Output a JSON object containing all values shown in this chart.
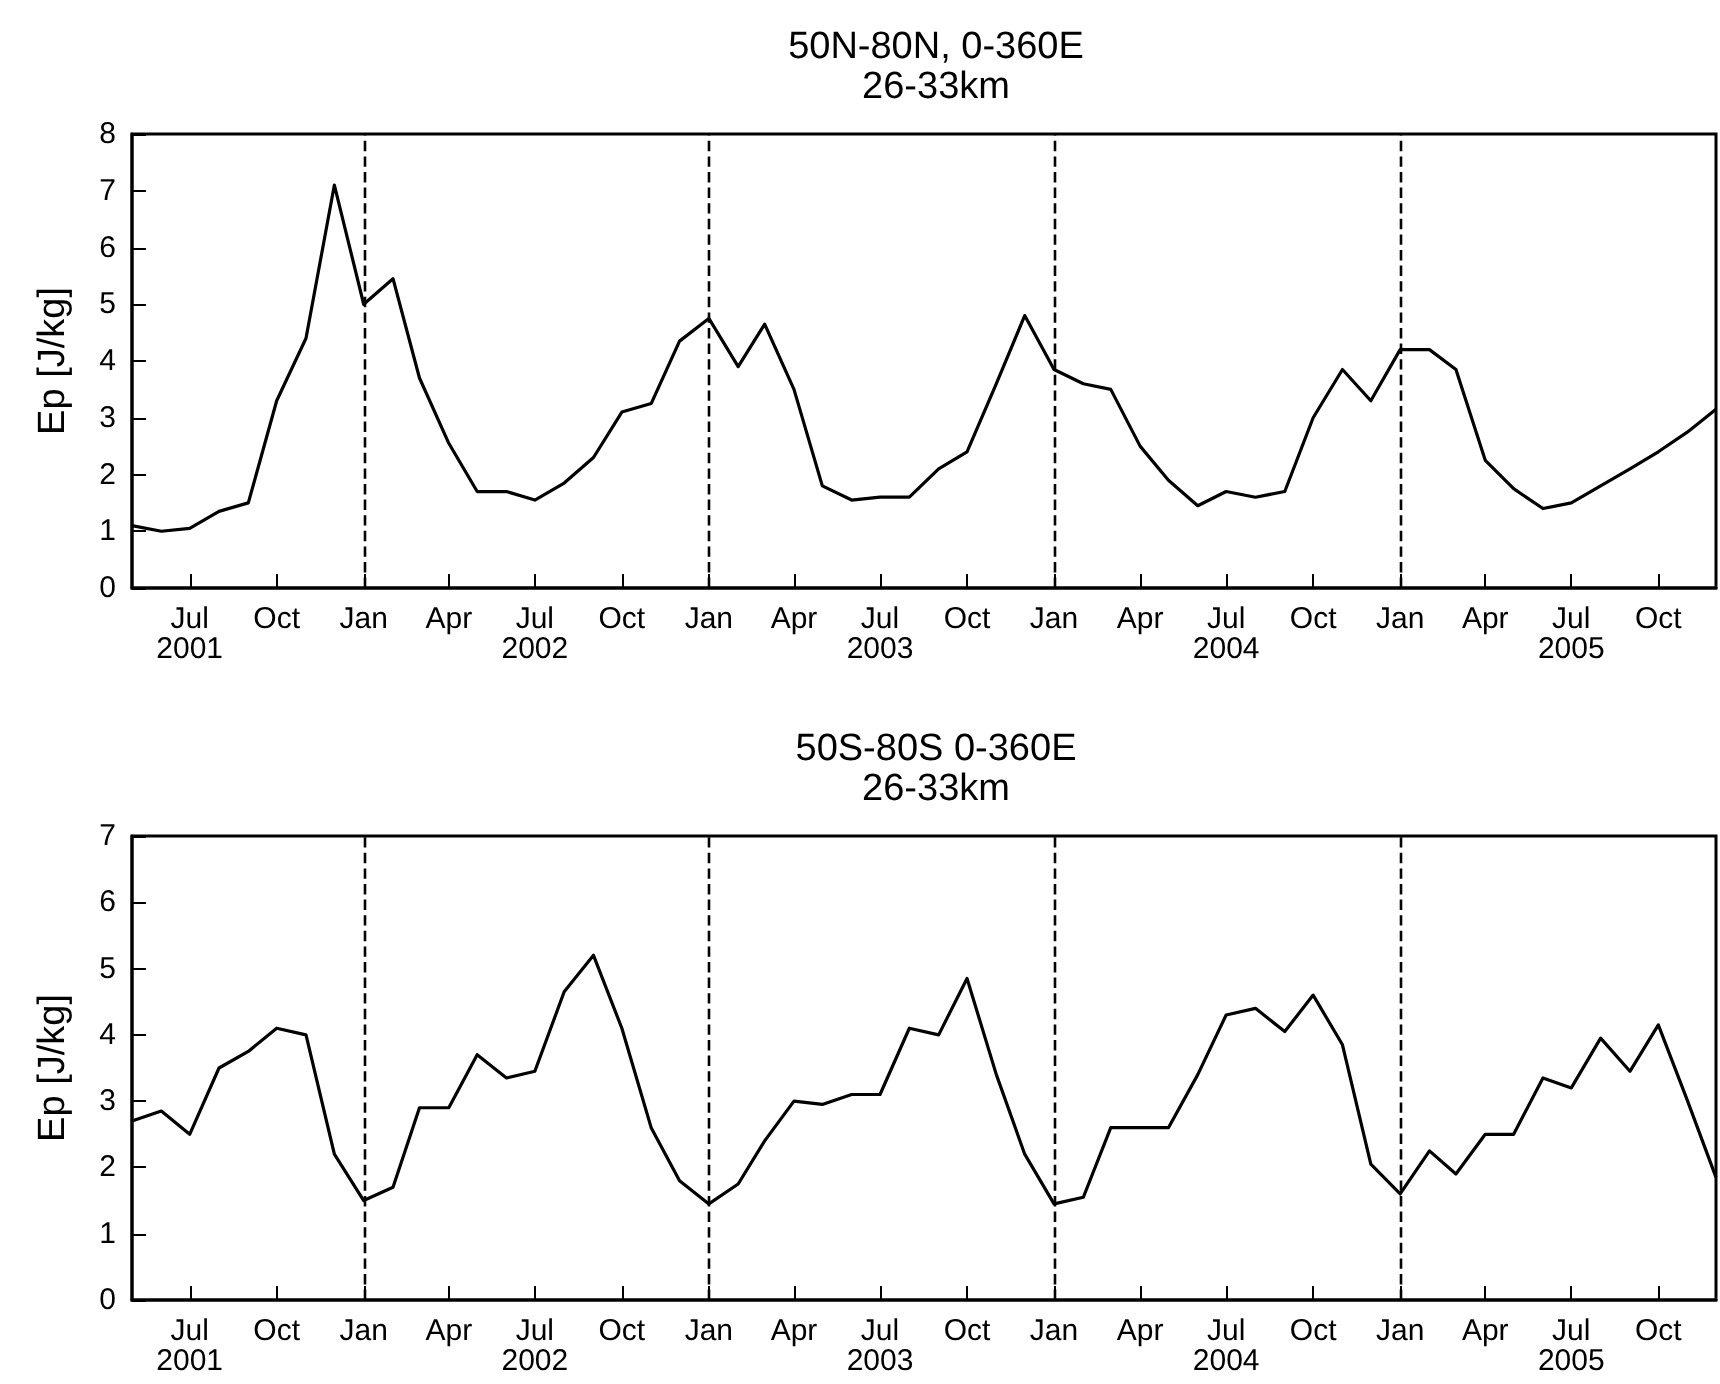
{
  "chart_data": [
    {
      "type": "line",
      "title": "50N-80N, 0-360E",
      "subtitle": "26-33km",
      "ylabel": "Ep [J/kg]",
      "x": [
        "2001-05",
        "2001-06",
        "2001-07",
        "2001-08",
        "2001-09",
        "2001-10",
        "2001-11",
        "2001-12",
        "2002-01",
        "2002-02",
        "2002-03",
        "2002-04",
        "2002-05",
        "2002-06",
        "2002-07",
        "2002-08",
        "2002-09",
        "2002-10",
        "2002-11",
        "2002-12",
        "2003-01",
        "2003-02",
        "2003-03",
        "2003-04",
        "2003-05",
        "2003-06",
        "2003-07",
        "2003-08",
        "2003-09",
        "2003-10",
        "2003-11",
        "2003-12",
        "2004-01",
        "2004-02",
        "2004-03",
        "2004-04",
        "2004-05",
        "2004-06",
        "2004-07",
        "2004-08",
        "2004-09",
        "2004-10",
        "2004-11",
        "2004-12",
        "2005-01",
        "2005-02",
        "2005-03",
        "2005-04",
        "2005-05",
        "2005-06",
        "2005-07",
        "2005-08",
        "2005-09",
        "2005-10",
        "2005-11",
        "2005-12"
      ],
      "series": [
        {
          "color": "#000000",
          "values": [
            1.1,
            1.0,
            1.05,
            1.35,
            1.5,
            3.3,
            4.4,
            7.1,
            5.0,
            5.45,
            3.7,
            2.55,
            1.7,
            1.7,
            1.55,
            1.85,
            2.3,
            3.1,
            3.25,
            4.35,
            4.75,
            3.9,
            4.65,
            3.5,
            1.8,
            1.55,
            1.6,
            1.6,
            2.1,
            2.4,
            3.6,
            4.8,
            3.85,
            3.6,
            3.5,
            2.5,
            1.9,
            1.45,
            1.7,
            1.6,
            1.7,
            3.0,
            3.85,
            3.3,
            4.2,
            4.2,
            3.85,
            2.25,
            1.75,
            1.4,
            1.5,
            1.8,
            2.1,
            2.4,
            2.75,
            3.15
          ]
        }
      ],
      "xlim": [
        "2001-05",
        "2005-12"
      ],
      "xticks": [
        {
          "value": "2001-07",
          "label": "Jul\n2001"
        },
        {
          "value": "2001-10",
          "label": "Oct"
        },
        {
          "value": "2002-01",
          "label": "Jan"
        },
        {
          "value": "2002-04",
          "label": "Apr"
        },
        {
          "value": "2002-07",
          "label": "Jul\n2002"
        },
        {
          "value": "2002-10",
          "label": "Oct"
        },
        {
          "value": "2003-01",
          "label": "Jan"
        },
        {
          "value": "2003-04",
          "label": "Apr"
        },
        {
          "value": "2003-07",
          "label": "Jul\n2003"
        },
        {
          "value": "2003-10",
          "label": "Oct"
        },
        {
          "value": "2004-01",
          "label": "Jan"
        },
        {
          "value": "2004-04",
          "label": "Apr"
        },
        {
          "value": "2004-07",
          "label": "Jul\n2004"
        },
        {
          "value": "2004-10",
          "label": "Oct"
        },
        {
          "value": "2005-01",
          "label": "Jan"
        },
        {
          "value": "2005-04",
          "label": "Apr"
        },
        {
          "value": "2005-07",
          "label": "Jul\n2005"
        },
        {
          "value": "2005-10",
          "label": "Oct"
        }
      ],
      "ylim": [
        0,
        8
      ],
      "yticks": [
        0,
        1,
        2,
        3,
        4,
        5,
        6,
        7,
        8
      ],
      "ref_lines": [
        {
          "axis": "x",
          "value": "2002-01",
          "line_style": "dashed",
          "color": "#000000"
        },
        {
          "axis": "x",
          "value": "2003-01",
          "line_style": "dashed",
          "color": "#000000"
        },
        {
          "axis": "x",
          "value": "2004-01",
          "line_style": "dashed",
          "color": "#000000"
        },
        {
          "axis": "x",
          "value": "2005-01",
          "line_style": "dashed",
          "color": "#000000"
        }
      ],
      "grid": false,
      "marker": "none",
      "line_style": "solid"
    },
    {
      "type": "line",
      "title": "50S-80S 0-360E",
      "subtitle": "26-33km",
      "ylabel": "Ep [J/kg]",
      "x": [
        "2001-05",
        "2001-06",
        "2001-07",
        "2001-08",
        "2001-09",
        "2001-10",
        "2001-11",
        "2001-12",
        "2002-01",
        "2002-02",
        "2002-03",
        "2002-04",
        "2002-05",
        "2002-06",
        "2002-07",
        "2002-08",
        "2002-09",
        "2002-10",
        "2002-11",
        "2002-12",
        "2003-01",
        "2003-02",
        "2003-03",
        "2003-04",
        "2003-05",
        "2003-06",
        "2003-07",
        "2003-08",
        "2003-09",
        "2003-10",
        "2003-11",
        "2003-12",
        "2004-01",
        "2004-02",
        "2004-03",
        "2004-04",
        "2004-05",
        "2004-06",
        "2004-07",
        "2004-08",
        "2004-09",
        "2004-10",
        "2004-11",
        "2004-12",
        "2005-01",
        "2005-02",
        "2005-03",
        "2005-04",
        "2005-05",
        "2005-06",
        "2005-07",
        "2005-08",
        "2005-09",
        "2005-10",
        "2005-11",
        "2005-12"
      ],
      "series": [
        {
          "color": "#000000",
          "values": [
            2.7,
            2.85,
            2.5,
            3.5,
            3.75,
            4.1,
            4.0,
            2.2,
            1.5,
            1.7,
            2.9,
            2.9,
            3.7,
            3.35,
            3.45,
            4.65,
            5.2,
            4.1,
            2.6,
            1.8,
            1.45,
            1.75,
            2.4,
            3.0,
            2.95,
            3.1,
            3.1,
            4.1,
            4.0,
            4.85,
            3.4,
            2.2,
            1.45,
            1.55,
            2.6,
            2.6,
            2.6,
            3.4,
            4.3,
            4.4,
            4.05,
            4.6,
            3.85,
            2.05,
            1.6,
            2.25,
            1.9,
            2.5,
            2.5,
            3.35,
            3.2,
            3.95,
            3.45,
            4.15,
            3.0,
            1.85
          ]
        }
      ],
      "xlim": [
        "2001-05",
        "2005-12"
      ],
      "xticks": [
        {
          "value": "2001-07",
          "label": "Jul\n2001"
        },
        {
          "value": "2001-10",
          "label": "Oct"
        },
        {
          "value": "2002-01",
          "label": "Jan"
        },
        {
          "value": "2002-04",
          "label": "Apr"
        },
        {
          "value": "2002-07",
          "label": "Jul\n2002"
        },
        {
          "value": "2002-10",
          "label": "Oct"
        },
        {
          "value": "2003-01",
          "label": "Jan"
        },
        {
          "value": "2003-04",
          "label": "Apr"
        },
        {
          "value": "2003-07",
          "label": "Jul\n2003"
        },
        {
          "value": "2003-10",
          "label": "Oct"
        },
        {
          "value": "2004-01",
          "label": "Jan"
        },
        {
          "value": "2004-04",
          "label": "Apr"
        },
        {
          "value": "2004-07",
          "label": "Jul\n2004"
        },
        {
          "value": "2004-10",
          "label": "Oct"
        },
        {
          "value": "2005-01",
          "label": "Jan"
        },
        {
          "value": "2005-04",
          "label": "Apr"
        },
        {
          "value": "2005-07",
          "label": "Jul\n2005"
        },
        {
          "value": "2005-10",
          "label": "Oct"
        }
      ],
      "ylim": [
        0,
        7
      ],
      "yticks": [
        0,
        1,
        2,
        3,
        4,
        5,
        6,
        7
      ],
      "ref_lines": [
        {
          "axis": "x",
          "value": "2002-01",
          "line_style": "dashed",
          "color": "#000000"
        },
        {
          "axis": "x",
          "value": "2003-01",
          "line_style": "dashed",
          "color": "#000000"
        },
        {
          "axis": "x",
          "value": "2004-01",
          "line_style": "dashed",
          "color": "#000000"
        },
        {
          "axis": "x",
          "value": "2005-01",
          "line_style": "dashed",
          "color": "#000000"
        }
      ],
      "grid": false,
      "marker": "none",
      "line_style": "solid"
    }
  ]
}
